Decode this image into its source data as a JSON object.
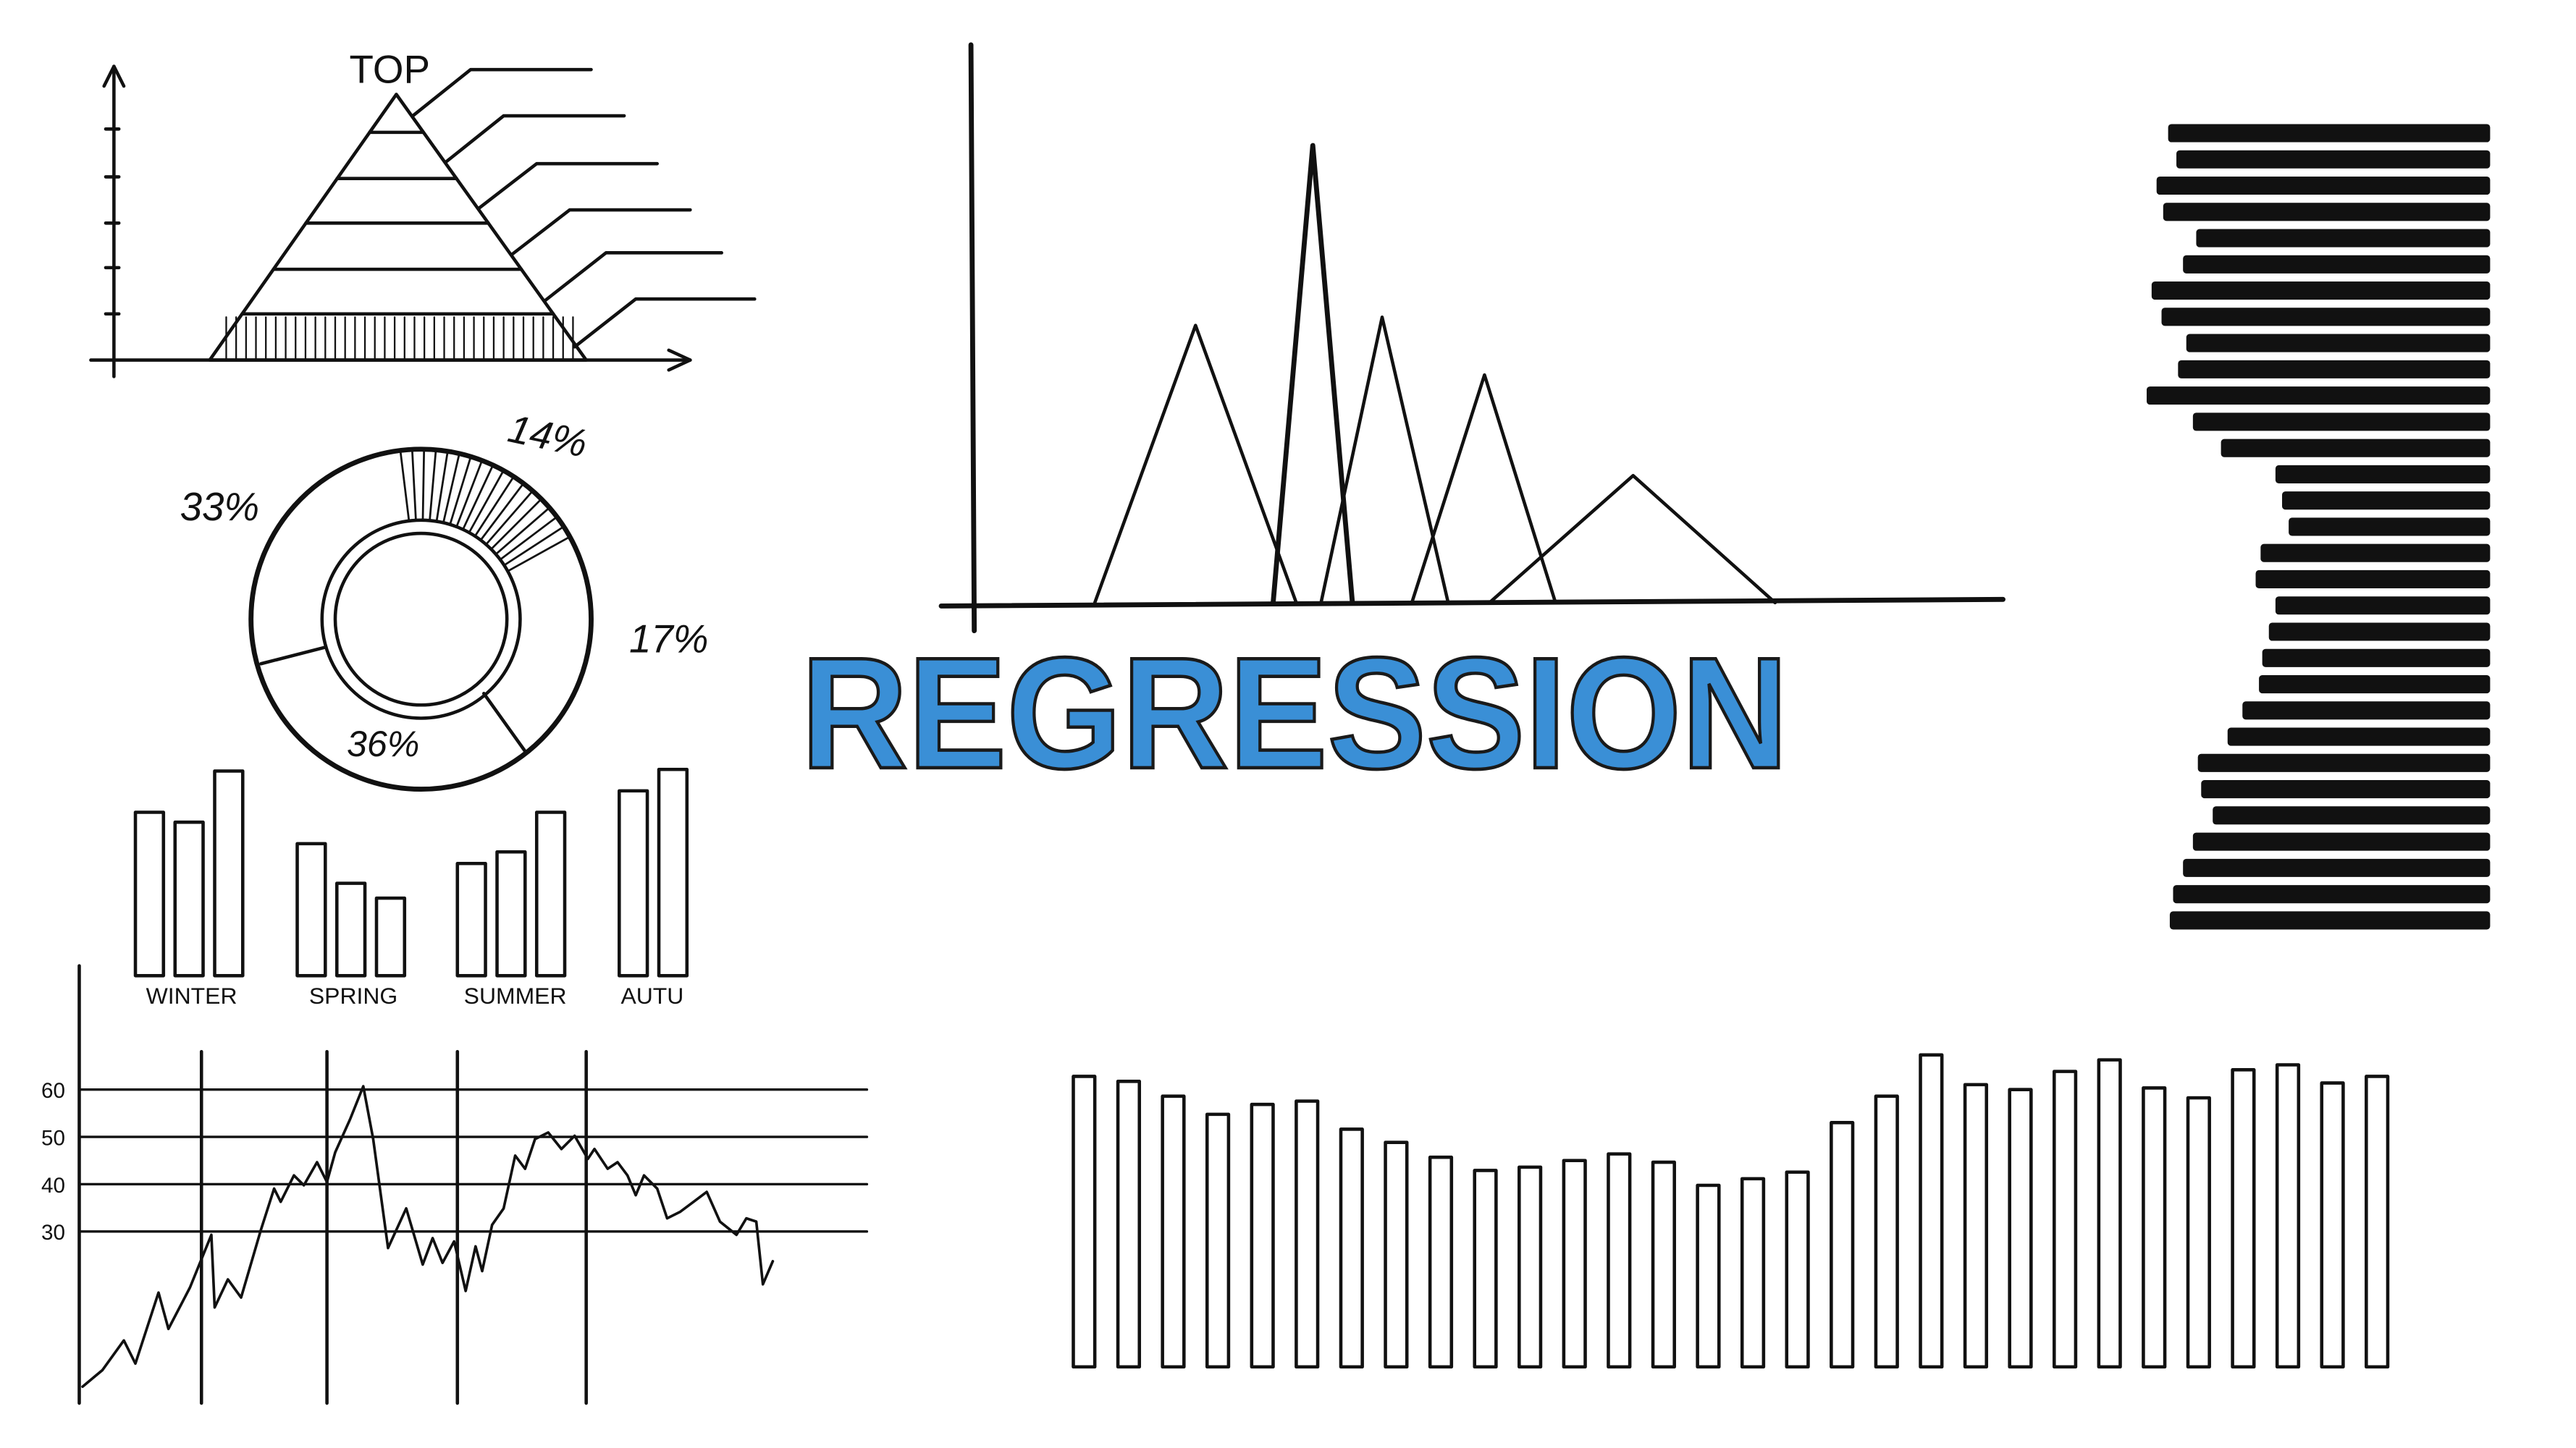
{
  "title": "REGRESSION",
  "pyramid": {
    "label": "TOP"
  },
  "donut": {
    "labels": [
      "14%",
      "33%",
      "17%",
      "36%"
    ]
  },
  "bar_groups": {
    "labels": [
      "WINTER",
      "SPRING",
      "SUMMER",
      "AUTU"
    ]
  },
  "line_chart": {
    "yticks": [
      60,
      50,
      40,
      30
    ]
  }
}
